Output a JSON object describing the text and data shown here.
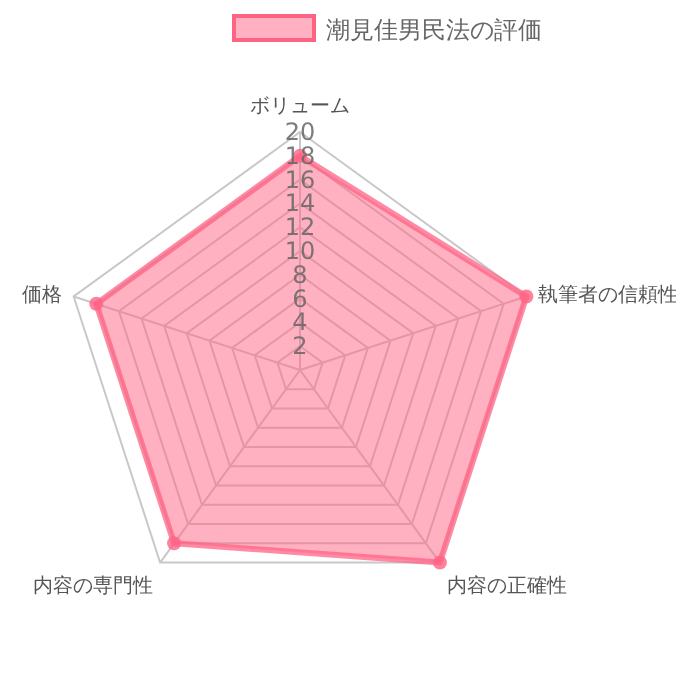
{
  "chart_data": {
    "type": "radar",
    "categories": [
      "ボリューム",
      "執筆者の信頼性",
      "内容の正確性",
      "内容の専門性",
      "価格"
    ],
    "series": [
      {
        "name": "潮見佳男民法の評価",
        "color": "#ff6384",
        "values": [
          18,
          20,
          20,
          18,
          18
        ]
      }
    ],
    "ylim": [
      0,
      20
    ],
    "yticks": [
      2,
      4,
      6,
      8,
      10,
      12,
      14,
      16,
      18,
      20
    ],
    "grid": true,
    "legend": "top",
    "marker": "circle"
  }
}
